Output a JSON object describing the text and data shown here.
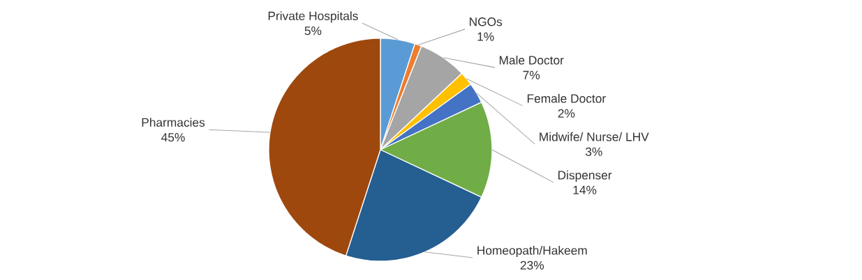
{
  "chart_data": {
    "type": "pie",
    "categories": [
      "Private Hospitals",
      "NGOs",
      "Male Doctor",
      "Female Doctor",
      "Midwife/ Nurse/ LHV",
      "Dispenser",
      "Homeopath/Hakeem",
      "Pharmacies"
    ],
    "values": [
      5,
      1,
      7,
      2,
      3,
      14,
      23,
      45
    ],
    "value_labels": [
      "5%",
      "1%",
      "7%",
      "2%",
      "3%",
      "14%",
      "23%",
      "45%"
    ],
    "colors": [
      "#5b9bd5",
      "#ed7d31",
      "#a5a5a5",
      "#ffc000",
      "#4472c4",
      "#70ad47",
      "#255e91",
      "#9e480e"
    ],
    "legend": false
  }
}
